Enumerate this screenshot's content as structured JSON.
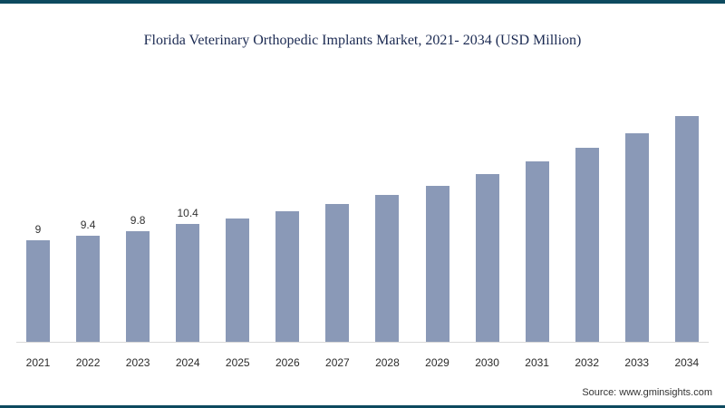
{
  "header": {
    "title": "Florida Veterinary Orthopedic Implants Market, 2021- 2034 (USD Million)"
  },
  "footer": {
    "source": "Source: www.gminsights.com"
  },
  "colors": {
    "bar": "#8a99b7",
    "border_accent": "#0d4a5f",
    "title_text": "#1b2a52"
  },
  "chart_data": {
    "type": "bar",
    "title": "Florida Veterinary Orthopedic Implants Market, 2021- 2034 (USD Million)",
    "categories": [
      "2021",
      "2022",
      "2023",
      "2024",
      "2025",
      "2026",
      "2027",
      "2028",
      "2029",
      "2030",
      "2031",
      "2032",
      "2033",
      "2034"
    ],
    "values": [
      9,
      9.4,
      9.8,
      10.4,
      10.9,
      11.5,
      12.2,
      13,
      13.8,
      14.8,
      15.9,
      17.1,
      18.4,
      19.9
    ],
    "data_labels": [
      "9",
      "9.4",
      "9.8",
      "10.4",
      "",
      "",
      "",
      "",
      "",
      "",
      "",
      "",
      "",
      ""
    ],
    "xlabel": "",
    "ylabel": "USD Million",
    "ylim": [
      0,
      21
    ],
    "grid": false,
    "legend": false,
    "bar_color": "#8a99b7"
  }
}
